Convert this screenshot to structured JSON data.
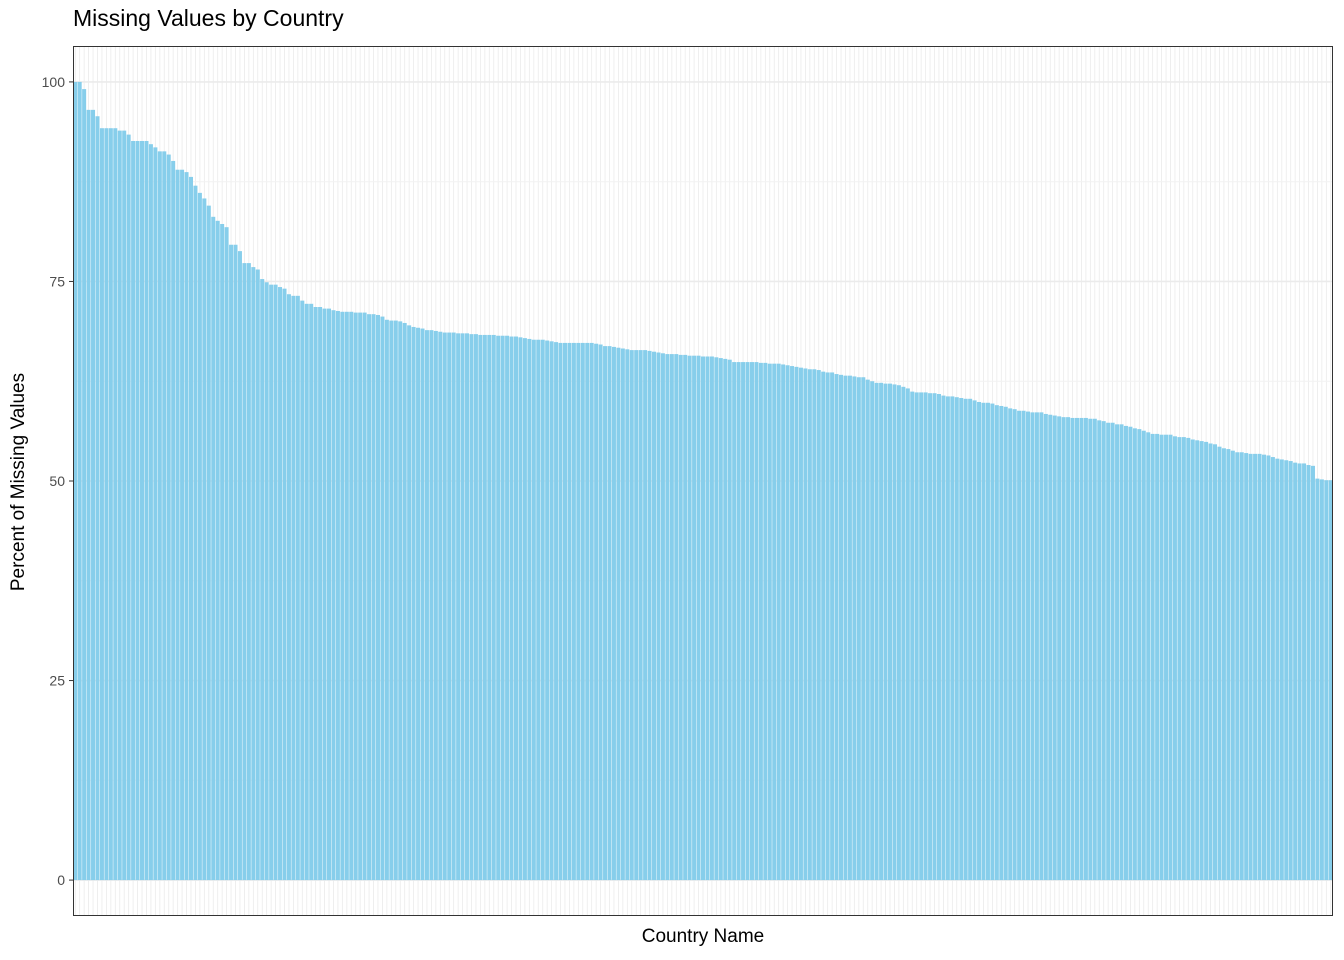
{
  "chart_data": {
    "type": "bar",
    "title": "Missing Values by Country",
    "xlabel": "Country Name",
    "ylabel": "Percent of Missing Values",
    "ylim": [
      -4.5,
      104.5
    ],
    "yticks": [
      0,
      25,
      50,
      75,
      100
    ],
    "grid": true,
    "x_tick_labels_shown": false,
    "bar_color": "#87CEEB",
    "values": [
      100,
      100,
      99.1,
      96.5,
      96.5,
      95.7,
      94.2,
      94.2,
      94.2,
      94.2,
      93.9,
      93.9,
      93.4,
      92.6,
      92.6,
      92.6,
      92.6,
      92.2,
      91.8,
      91.3,
      91.3,
      90.9,
      90.1,
      89,
      89,
      88.7,
      88.1,
      87,
      86.1,
      85.4,
      84.5,
      83.1,
      82.6,
      82.2,
      81.8,
      79.6,
      79.6,
      78.8,
      77.3,
      77.3,
      76.8,
      76.5,
      75.3,
      74.9,
      74.6,
      74.6,
      74.3,
      74.1,
      73.4,
      73.2,
      73.2,
      72.6,
      72.2,
      72.2,
      71.8,
      71.8,
      71.6,
      71.6,
      71.4,
      71.3,
      71.2,
      71.2,
      71.2,
      71.1,
      71.1,
      71.1,
      70.9,
      70.9,
      70.8,
      70.6,
      70.2,
      70.1,
      70.1,
      70,
      69.8,
      69.5,
      69.3,
      69.2,
      69.1,
      68.9,
      68.9,
      68.8,
      68.7,
      68.6,
      68.6,
      68.6,
      68.5,
      68.5,
      68.5,
      68.4,
      68.4,
      68.3,
      68.3,
      68.3,
      68.3,
      68.2,
      68.2,
      68.2,
      68.1,
      68.1,
      68,
      67.9,
      67.8,
      67.7,
      67.7,
      67.7,
      67.6,
      67.5,
      67.4,
      67.3,
      67.3,
      67.3,
      67.3,
      67.3,
      67.3,
      67.3,
      67.3,
      67.2,
      67.1,
      66.9,
      66.9,
      66.8,
      66.7,
      66.6,
      66.5,
      66.4,
      66.4,
      66.4,
      66.4,
      66.3,
      66.2,
      66.1,
      66,
      65.9,
      65.9,
      65.9,
      65.8,
      65.8,
      65.7,
      65.7,
      65.7,
      65.6,
      65.6,
      65.6,
      65.5,
      65.4,
      65.3,
      65.2,
      64.9,
      64.9,
      64.9,
      64.9,
      64.9,
      64.9,
      64.8,
      64.8,
      64.7,
      64.7,
      64.7,
      64.6,
      64.5,
      64.4,
      64.3,
      64.2,
      64.1,
      64,
      64,
      63.9,
      63.7,
      63.6,
      63.6,
      63.4,
      63.3,
      63.2,
      63.2,
      63.1,
      63,
      63,
      62.7,
      62.5,
      62.3,
      62.3,
      62.2,
      62.2,
      62.1,
      62,
      61.8,
      61.6,
      61.2,
      61.1,
      61.1,
      61.1,
      61,
      61,
      60.9,
      60.7,
      60.6,
      60.6,
      60.5,
      60.4,
      60.3,
      60.3,
      60.1,
      59.9,
      59.8,
      59.8,
      59.7,
      59.5,
      59.4,
      59.3,
      59.1,
      59,
      58.8,
      58.8,
      58.7,
      58.6,
      58.6,
      58.6,
      58.4,
      58.3,
      58.2,
      58.1,
      58,
      58,
      57.9,
      57.9,
      57.9,
      57.9,
      57.8,
      57.8,
      57.6,
      57.5,
      57.3,
      57.3,
      57.1,
      57.1,
      56.9,
      56.8,
      56.6,
      56.5,
      56.3,
      56.1,
      55.9,
      55.9,
      55.8,
      55.8,
      55.8,
      55.6,
      55.5,
      55.5,
      55.4,
      55.2,
      55.1,
      55,
      54.9,
      54.7,
      54.6,
      54.3,
      54.1,
      54,
      53.8,
      53.6,
      53.6,
      53.5,
      53.4,
      53.4,
      53.4,
      53.3,
      53.2,
      53,
      52.8,
      52.7,
      52.6,
      52.5,
      52.3,
      52.2,
      52.2,
      52,
      51.9,
      50.3,
      50.2,
      50.1,
      50.1
    ]
  }
}
